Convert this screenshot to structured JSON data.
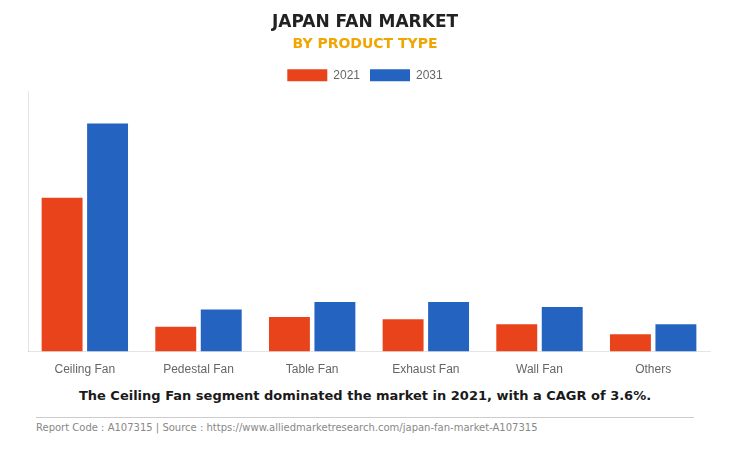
{
  "chart_data": {
    "type": "bar",
    "title": "JAPAN FAN MARKET",
    "subtitle": "BY PRODUCT TYPE",
    "categories": [
      "Ceiling Fan",
      "Pedestal Fan",
      "Table Fan",
      "Exhaust Fan",
      "Wall Fan",
      "Others"
    ],
    "series": [
      {
        "name": "2021",
        "color": "#e8431a",
        "values": [
          0.62,
          0.1,
          0.14,
          0.13,
          0.11,
          0.07
        ]
      },
      {
        "name": "2031",
        "color": "#2563c0",
        "values": [
          0.92,
          0.17,
          0.2,
          0.2,
          0.18,
          0.11
        ]
      }
    ],
    "ylim": [
      0,
      1.05
    ],
    "yticks": [],
    "grid": false,
    "legend": "top",
    "tick_labels": "x",
    "annotations": [
      "The Ceiling Fan segment dominated the market in 2021, with a CAGR of 3.6%.",
      "Report Code : A107315  |  Source : https://www.alliedmarketresearch.com/japan-fan-market-A107315"
    ]
  }
}
